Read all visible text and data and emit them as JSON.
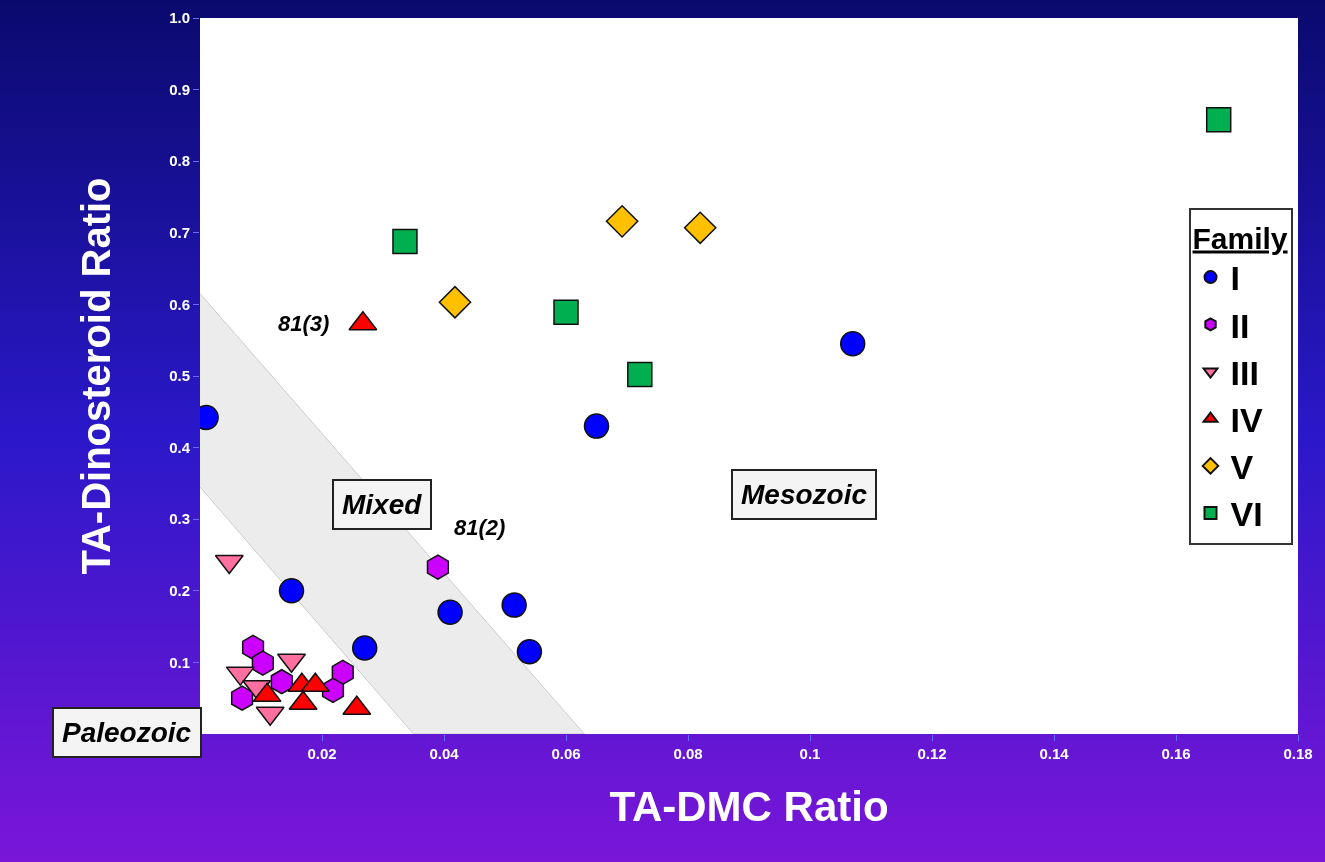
{
  "chart_data": {
    "type": "scatter",
    "xlabel": "TA-DMC Ratio",
    "ylabel": "TA-Dinosteroid Ratio",
    "legend_title": "Family",
    "legend": "right",
    "grid": false,
    "xlim": [
      0,
      0.18
    ],
    "xticks": [
      0.02,
      0.04,
      0.06,
      0.08,
      0.1,
      0.12,
      0.14,
      0.16,
      0.18
    ],
    "ylim": [
      0,
      1
    ],
    "yticks": [
      0.1,
      0.2,
      0.3,
      0.4,
      0.5,
      0.6,
      0.7,
      0.8,
      0.9,
      {
        "value": 1,
        "label": "1.0"
      }
    ],
    "series": [
      {
        "type": "area",
        "color": "#ececec",
        "x": [
          0,
          0.063,
          0.035,
          0
        ],
        "values": [
          0.615,
          0,
          0,
          0.345
        ]
      },
      {
        "name": "I",
        "color": "#0000ff",
        "marker": "circle",
        "x": [
          0.001,
          0.015,
          0.027,
          0.041,
          0.0515,
          0.054,
          0.065,
          0.107
        ],
        "values": [
          0.442,
          0.2,
          0.12,
          0.17,
          0.18,
          0.115,
          0.43,
          0.545
        ]
      },
      {
        "name": "II",
        "color": "#cc00ff",
        "x": [
          0.039,
          0.0087,
          0.0103,
          0.0069,
          0.0134,
          0.0234,
          0.0218
        ],
        "values": [
          0.233,
          0.121,
          0.099,
          0.05,
          0.073,
          0.086,
          0.061
        ]
      },
      {
        "name": "III",
        "color": "#ff6f9f",
        "marker": "triangle-down",
        "x": [
          0.0048,
          0.015,
          0.0066,
          0.0093,
          0.0115
        ],
        "values": [
          0.241,
          0.103,
          0.085,
          0.066,
          0.029
        ]
      },
      {
        "name": "IV",
        "color": "#ff0000",
        "marker": "triangle",
        "x": [
          0.0267,
          0.0167,
          0.0189,
          0.0169,
          0.0257,
          0.011
        ],
        "values": [
          0.573,
          0.068,
          0.068,
          0.043,
          0.036,
          0.054
        ]
      },
      {
        "name": "V",
        "color": "#ffc000",
        "marker": "diamond",
        "x": [
          0.0418,
          0.0692,
          0.082
        ],
        "values": [
          0.603,
          0.716,
          0.707
        ]
      },
      {
        "name": "VI",
        "color": "#00b050",
        "marker": "square",
        "x": [
          0.0336,
          0.06,
          0.0721,
          0.167
        ],
        "values": [
          0.688,
          0.589,
          0.502,
          0.858
        ]
      }
    ],
    "annotations": [
      "Mesozoic",
      "Mixed",
      "Paleozoic",
      {
        "text": "81(2)",
        "x": 0.039,
        "y": 0.233
      },
      {
        "text": "81(3)",
        "x": 0.0267,
        "y": 0.573
      }
    ]
  }
}
